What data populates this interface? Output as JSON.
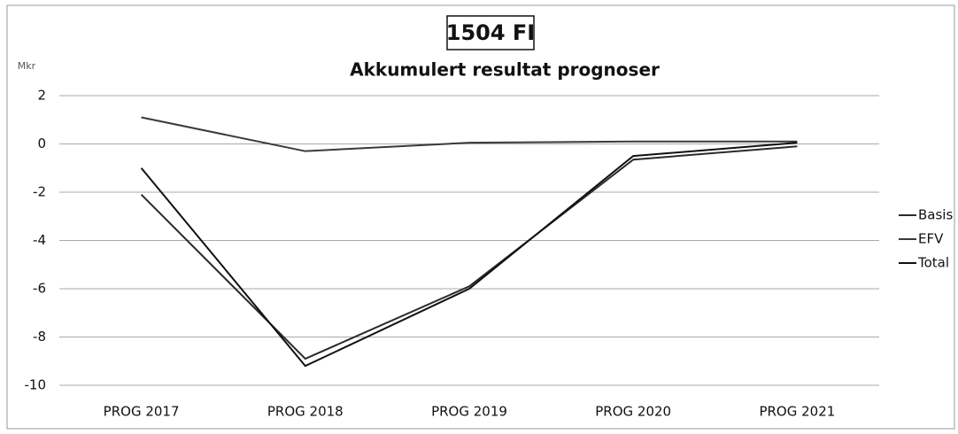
{
  "chart_data": {
    "type": "line",
    "title": "1504 FI",
    "subtitle": "Akkumulert resultat prognoser",
    "y_label": "Mkr",
    "categories": [
      "PROG 2017",
      "PROG 2018",
      "PROG 2019",
      "PROG 2020",
      "PROG 2021"
    ],
    "series": [
      {
        "name": "Basis",
        "color": "#2a2a2a",
        "values": [
          -2.1,
          -8.9,
          -5.9,
          -0.65,
          -0.1
        ]
      },
      {
        "name": "EFV",
        "color": "#3a3a3a",
        "values": [
          1.1,
          -0.3,
          0.05,
          0.1,
          0.1
        ]
      },
      {
        "name": "Total",
        "color": "#111111",
        "values": [
          -1.0,
          -9.2,
          -6.0,
          -0.5,
          0.05
        ]
      }
    ],
    "ylim": [
      -10,
      2
    ],
    "yticks": [
      -10,
      -8,
      -6,
      -4,
      -2,
      0,
      2
    ],
    "grid": true,
    "legend": "right"
  }
}
